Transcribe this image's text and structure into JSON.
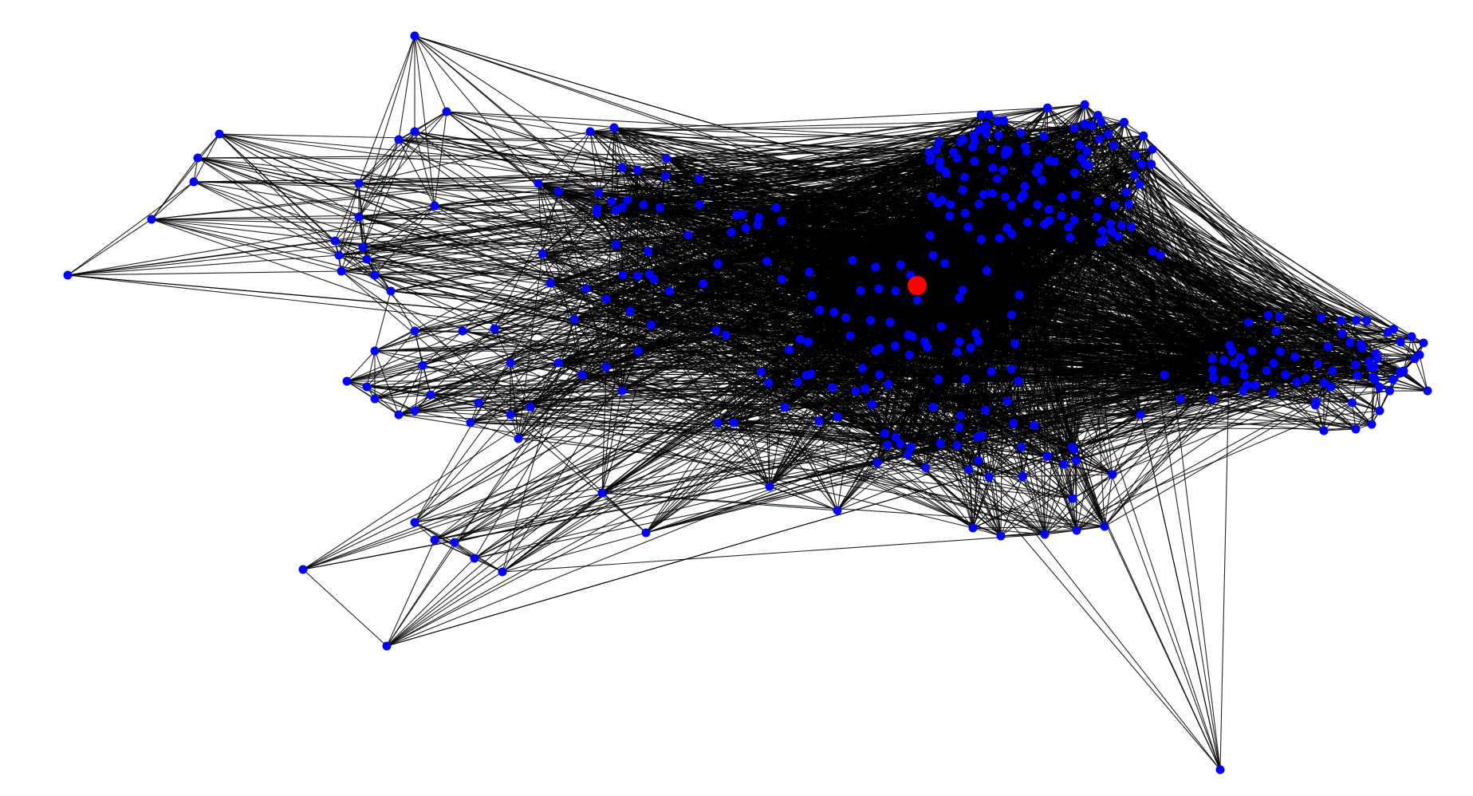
{
  "graph": {
    "node_color": "#0000ff",
    "highlight_color": "#ff0000",
    "edge_color": "#000000",
    "node_count_shown_approx": 360,
    "highlighted_node_count": 1
  }
}
